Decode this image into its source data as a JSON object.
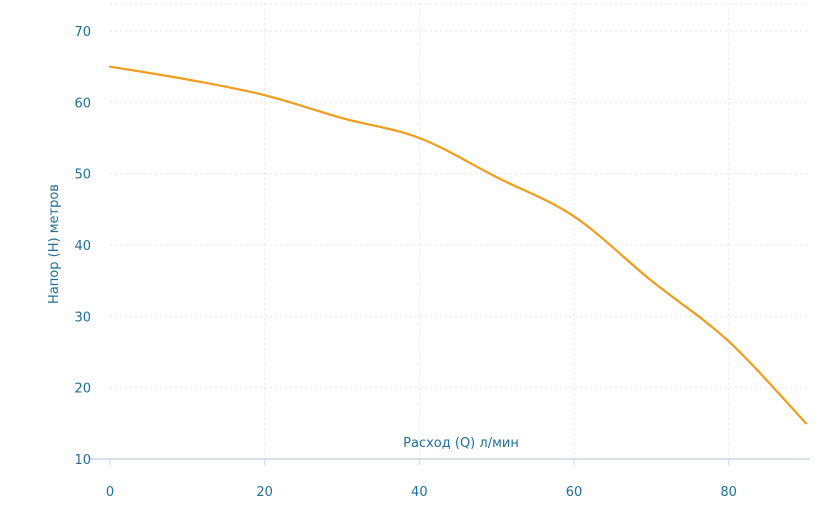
{
  "chart_data": {
    "type": "line",
    "title": "",
    "xlabel": "Расход (Q) л/мин",
    "ylabel": "Напор (H) метров",
    "xlim": [
      0,
      90
    ],
    "ylim": [
      10,
      70
    ],
    "x_ticks": [
      0,
      20,
      40,
      60,
      80
    ],
    "y_ticks": [
      10,
      20,
      30,
      40,
      50,
      60,
      70
    ],
    "x_tick_labels": [
      "0",
      "20",
      "40",
      "60",
      "80"
    ],
    "y_tick_labels": [
      "10",
      "20",
      "30",
      "40",
      "50",
      "60",
      "70"
    ],
    "grid": true,
    "legend": "none",
    "colors": {
      "series": "#f39c1b",
      "text": "#1f6f9a",
      "grid": "#e3e6ea",
      "axis": "#c9d8e6"
    },
    "series": [
      {
        "x": [
          0,
          10,
          20,
          30,
          40,
          50,
          60,
          70,
          80,
          90
        ],
        "y": [
          65,
          63.2,
          61,
          57.8,
          55,
          49.5,
          44,
          35,
          26.5,
          15
        ]
      }
    ]
  }
}
